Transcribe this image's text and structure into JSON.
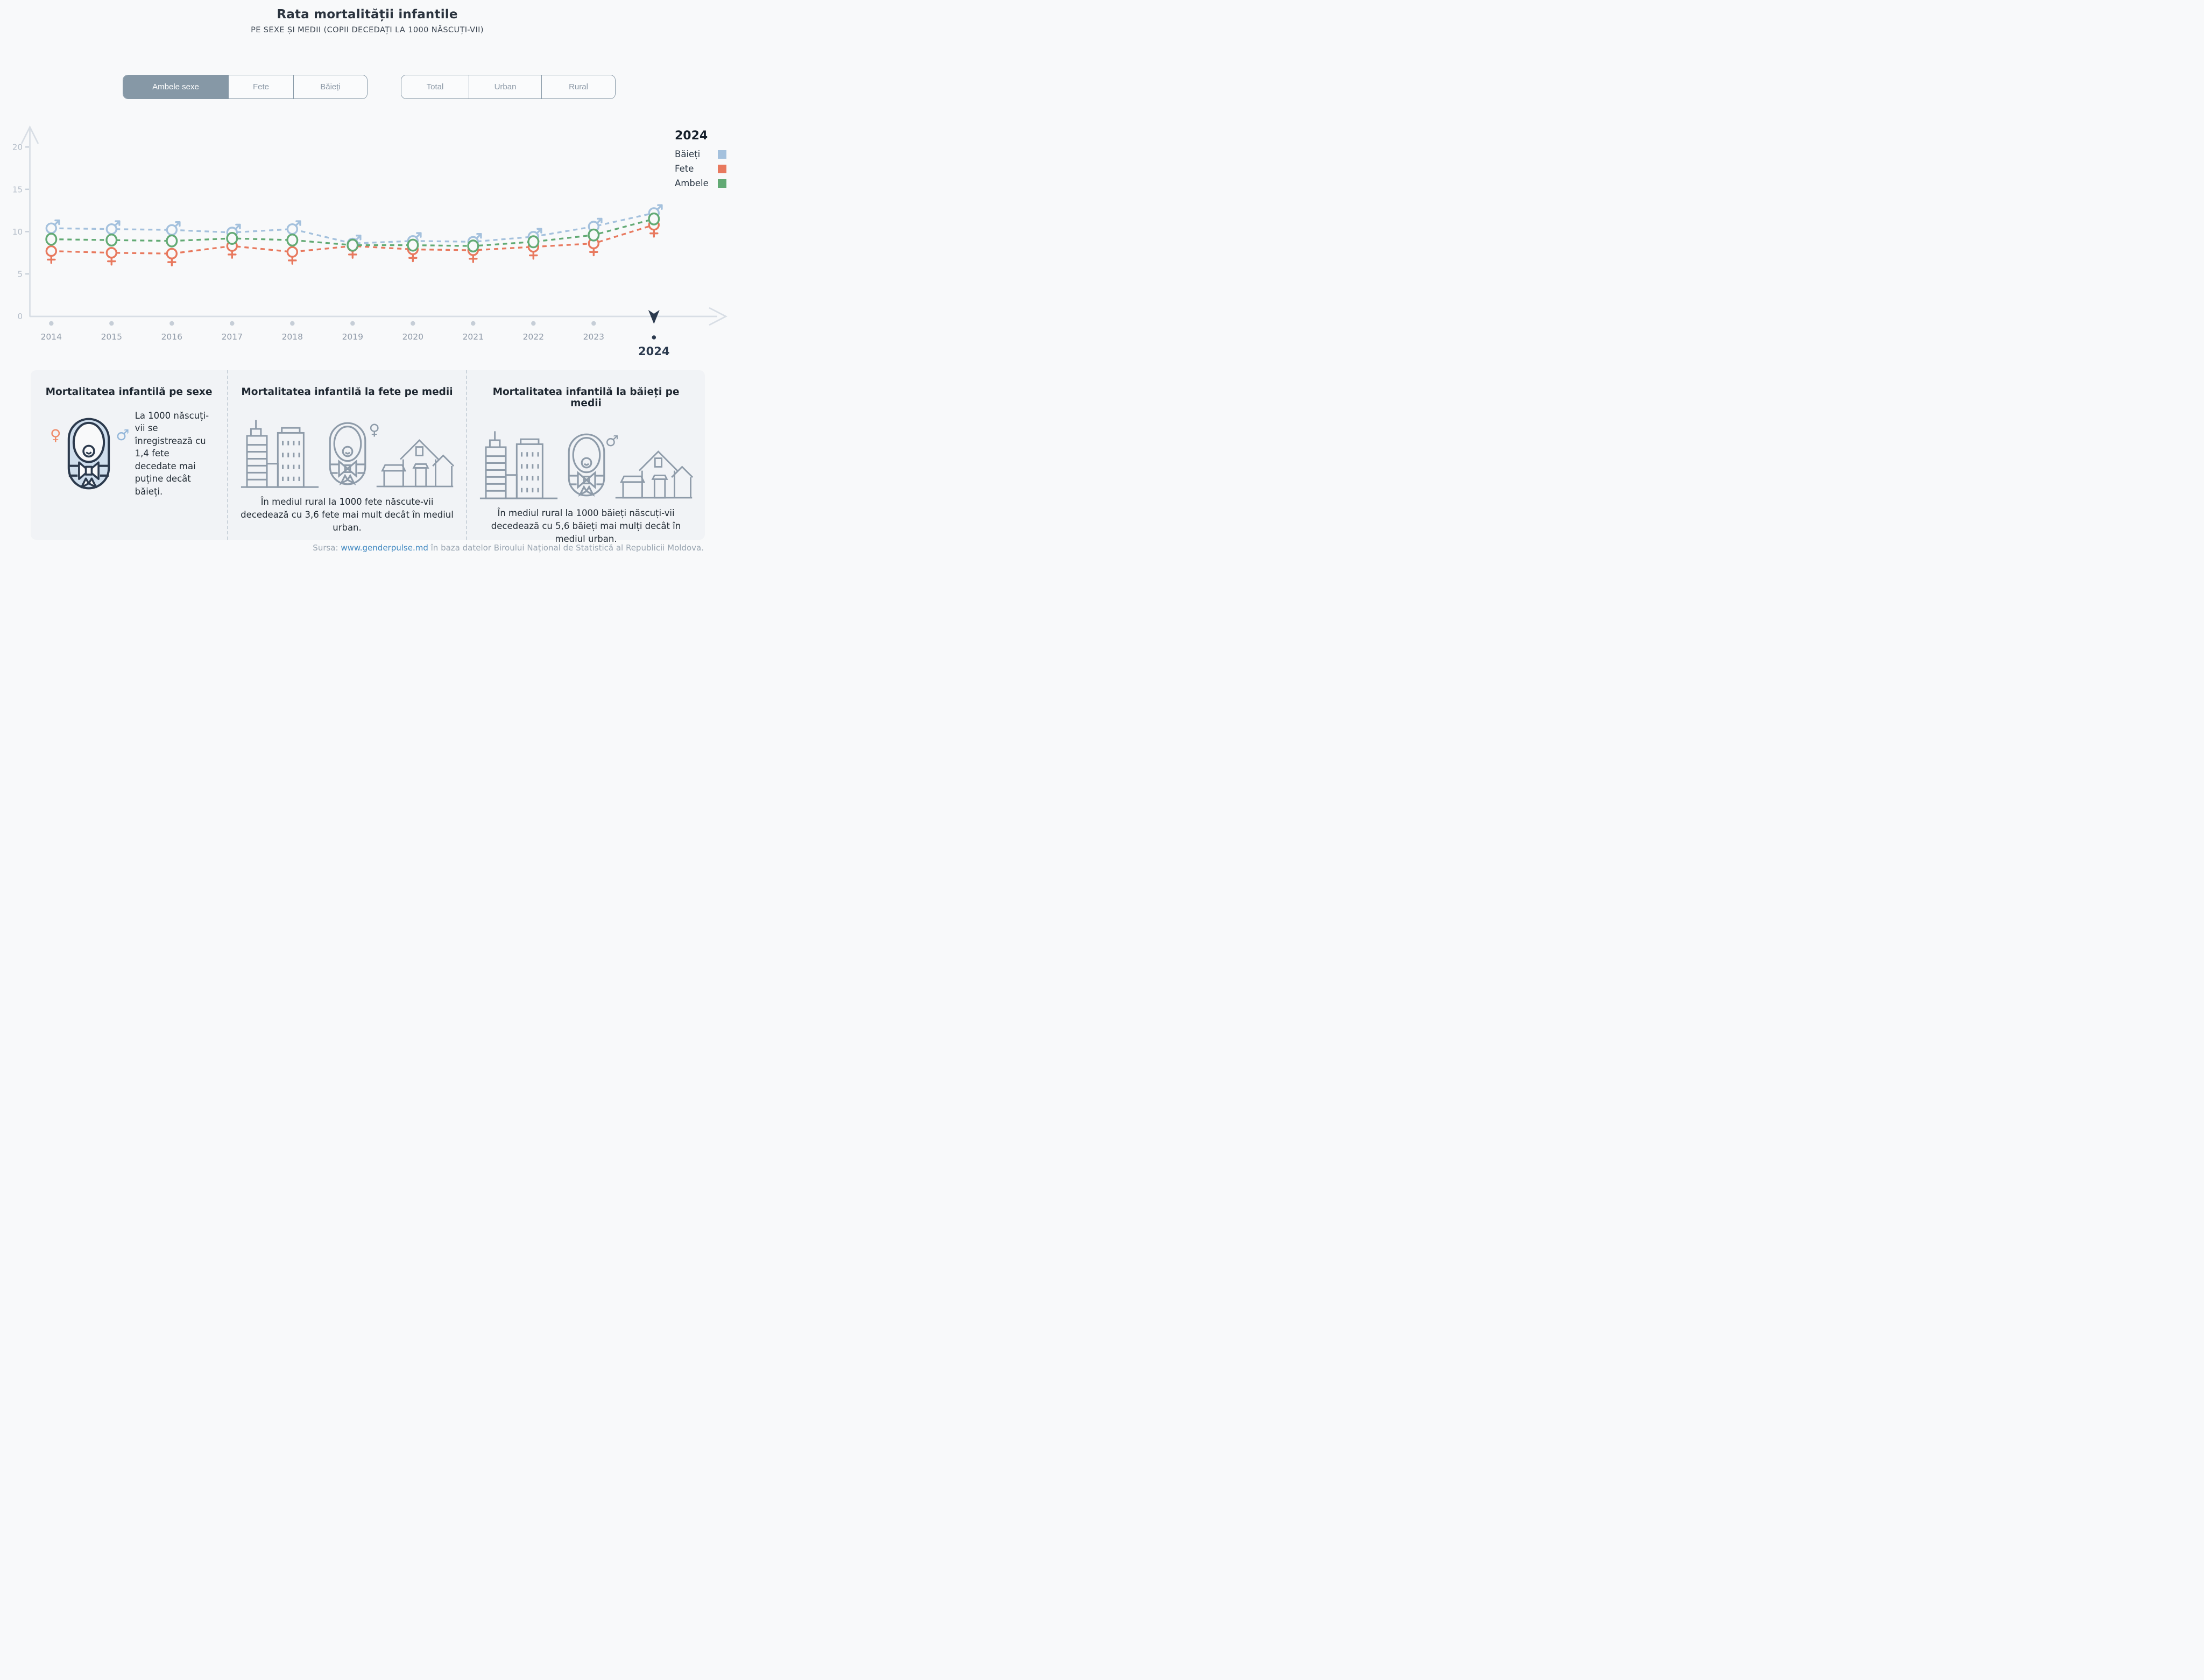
{
  "header": {
    "title": "Rata mortalității infantile",
    "subtitle": "PE SEXE ȘI MEDII (COPII DECEDAȚI LA 1000 NĂSCUȚI-VII)"
  },
  "controls": {
    "sex_tabs": [
      {
        "label": "Ambele sexe",
        "active": true
      },
      {
        "label": "Fete",
        "active": false
      },
      {
        "label": "Băieți",
        "active": false
      }
    ],
    "area_tabs": [
      {
        "label": "Total",
        "active": false
      },
      {
        "label": "Urban",
        "active": false
      },
      {
        "label": "Rural",
        "active": false
      }
    ]
  },
  "legend": {
    "year": "2024",
    "entries": [
      {
        "label": "Băieți",
        "color": "#a4c1dd"
      },
      {
        "label": "Fete",
        "color": "#e8795e"
      },
      {
        "label": "Ambele",
        "color": "#62aa74"
      }
    ]
  },
  "chart_data": {
    "type": "line",
    "title": "Rata mortalității infantile",
    "xlabel": "",
    "ylabel": "",
    "x": [
      2014,
      2015,
      2016,
      2017,
      2018,
      2019,
      2020,
      2021,
      2022,
      2023,
      2024
    ],
    "ylim": [
      0,
      20
    ],
    "yticks": [
      0,
      5,
      10,
      15,
      20
    ],
    "grid": false,
    "line_style": "dashed",
    "legend_position": "top-right",
    "selected_year": 2024,
    "series": [
      {
        "name": "Băieți",
        "marker": "male",
        "color": "#a4c1dd",
        "values": [
          10.4,
          10.3,
          10.2,
          9.9,
          10.3,
          8.6,
          8.9,
          8.8,
          9.4,
          10.6,
          12.2
        ]
      },
      {
        "name": "Fete",
        "marker": "female",
        "color": "#e8795e",
        "values": [
          7.7,
          7.5,
          7.4,
          8.3,
          7.6,
          8.3,
          7.9,
          7.8,
          8.2,
          8.6,
          10.8
        ]
      },
      {
        "name": "Ambele",
        "marker": "circle",
        "color": "#62aa74",
        "values": [
          9.1,
          9.0,
          8.9,
          9.2,
          9.0,
          8.4,
          8.4,
          8.3,
          8.8,
          9.6,
          11.5
        ]
      }
    ]
  },
  "cards": [
    {
      "title": "Mortalitatea infantilă pe sexe",
      "text": "La 1000 născuți-vii se înregistrează cu 1,4 fete decedate mai puține decât băieți."
    },
    {
      "title": "Mortalitatea infantilă la fete pe medii",
      "text": "În mediul rural la 1000 fete născute-vii decedează cu 3,6 fete mai mult decât în mediul urban."
    },
    {
      "title": "Mortalitatea infantilă la băieți pe medii",
      "text": "În mediul rural la 1000 băieți născuți-vii decedează cu 5,6 băieți mai mulți decât în mediul urban."
    }
  ],
  "footer": {
    "source_label": "Sursa:",
    "link": "www.genderpulse.md",
    "suffix": "în baza datelor Biroului Național de Statistică al Republicii Moldova."
  }
}
